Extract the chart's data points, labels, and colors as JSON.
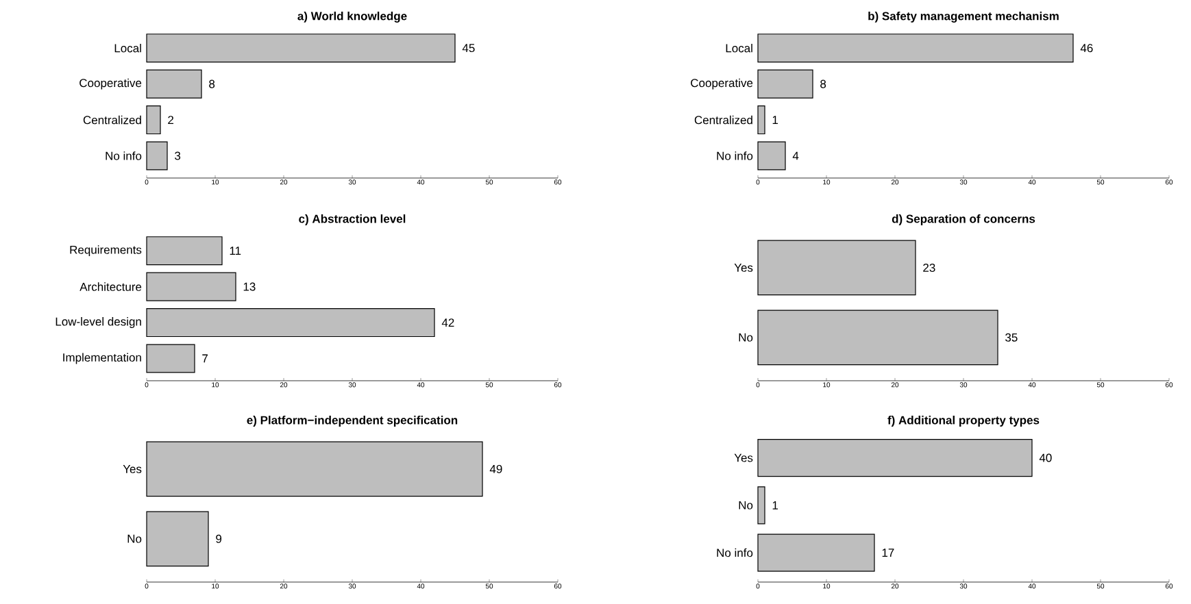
{
  "chart_data": [
    {
      "type": "bar",
      "orientation": "horizontal",
      "title": "a) World knowledge",
      "categories": [
        "Local",
        "Cooperative",
        "Centralized",
        "No info"
      ],
      "values": [
        45,
        8,
        2,
        3
      ],
      "color": "#bebebe",
      "xlim": [
        0,
        60
      ],
      "xticks": [
        0,
        10,
        20,
        30,
        40,
        50,
        60
      ],
      "data_labels": true
    },
    {
      "type": "bar",
      "orientation": "horizontal",
      "title": "b) Safety management mechanism",
      "categories": [
        "Local",
        "Cooperative",
        "Centralized",
        "No info"
      ],
      "values": [
        46,
        8,
        1,
        4
      ],
      "color": "#bebebe",
      "xlim": [
        0,
        60
      ],
      "xticks": [
        0,
        10,
        20,
        30,
        40,
        50,
        60
      ],
      "data_labels": true
    },
    {
      "type": "bar",
      "orientation": "horizontal",
      "title": "c) Abstraction level",
      "categories": [
        "Requirements",
        "Architecture",
        "Low-level design",
        "Implementation"
      ],
      "values": [
        11,
        13,
        42,
        7
      ],
      "color": "#bebebe",
      "xlim": [
        0,
        60
      ],
      "xticks": [
        0,
        10,
        20,
        30,
        40,
        50,
        60
      ],
      "data_labels": true
    },
    {
      "type": "bar",
      "orientation": "horizontal",
      "title": "d) Separation of concerns",
      "categories": [
        "Yes",
        "No"
      ],
      "values": [
        23,
        35
      ],
      "color": "#bebebe",
      "xlim": [
        0,
        60
      ],
      "xticks": [
        0,
        10,
        20,
        30,
        40,
        50,
        60
      ],
      "data_labels": true
    },
    {
      "type": "bar",
      "orientation": "horizontal",
      "title": "e) Platform−independent specification",
      "categories": [
        "Yes",
        "No"
      ],
      "values": [
        49,
        9
      ],
      "color": "#bebebe",
      "xlim": [
        0,
        60
      ],
      "xticks": [
        0,
        10,
        20,
        30,
        40,
        50,
        60
      ],
      "data_labels": true
    },
    {
      "type": "bar",
      "orientation": "horizontal",
      "title": "f) Additional property types",
      "categories": [
        "Yes",
        "No",
        "No info"
      ],
      "values": [
        40,
        1,
        17
      ],
      "color": "#bebebe",
      "xlim": [
        0,
        60
      ],
      "xticks": [
        0,
        10,
        20,
        30,
        40,
        50,
        60
      ],
      "data_labels": true
    }
  ]
}
